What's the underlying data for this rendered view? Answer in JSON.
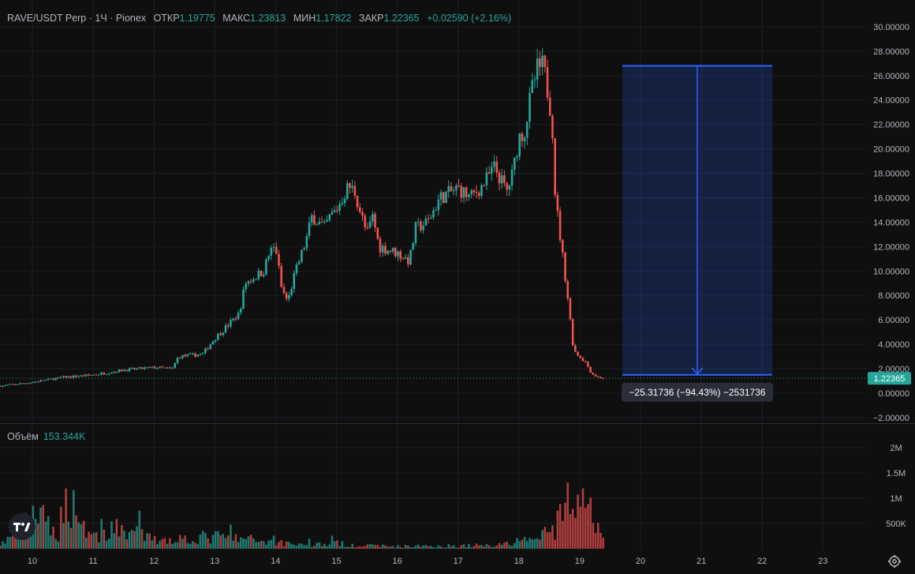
{
  "header": {
    "symbol": "RAVE/USDT Perp",
    "dot1": "·",
    "interval": "1Ч",
    "dot2": "·",
    "exchange": "Pionex",
    "open_label": "ОТКР",
    "open_value": "1.19775",
    "high_label": "МАКС",
    "high_value": "1.23813",
    "low_label": "МИН",
    "low_value": "1.17822",
    "close_label": "ЗАКР",
    "close_value": "1.22365",
    "change_value": "+0.02590 (+2.16%)"
  },
  "volume": {
    "label": "Объём",
    "value": "153.344K"
  },
  "last_price": "1.22365",
  "measure": {
    "label": "−25.31736 (−94.43%) −2531736",
    "from": 26.8,
    "to": 1.5
  },
  "colors": {
    "up": "#26a69a",
    "down": "#ef5350",
    "measure": "#2962ff",
    "background": "#0f0f0f"
  },
  "icons": {
    "logo": "tradingview-logo-icon",
    "settings": "gear-icon"
  },
  "chart_data": {
    "type": "candlestick",
    "title": "RAVE/USDT Perp · 1Ч · Pionex",
    "x_ticks": [
      "10",
      "11",
      "12",
      "13",
      "14",
      "15",
      "16",
      "17",
      "18",
      "19",
      "20",
      "21",
      "22",
      "23"
    ],
    "price_ticks": [
      "30.00000",
      "28.00000",
      "26.00000",
      "24.00000",
      "22.00000",
      "20.00000",
      "18.00000",
      "16.00000",
      "14.00000",
      "12.00000",
      "10.00000",
      "8.00000",
      "6.00000",
      "4.00000",
      "2.00000",
      "0.00000",
      "−2.00000"
    ],
    "volume_ticks": [
      "2M",
      "1.5M",
      "1M",
      "500K"
    ],
    "ylim": [
      -2,
      30
    ],
    "volume_ylim": [
      0,
      2000000
    ],
    "price_path": [
      [
        9.5,
        0.6
      ],
      [
        10.0,
        0.9
      ],
      [
        10.5,
        1.3
      ],
      [
        11.0,
        1.5
      ],
      [
        11.5,
        1.9
      ],
      [
        12.0,
        2.1
      ],
      [
        12.3,
        2.0
      ],
      [
        12.4,
        3.0
      ],
      [
        12.8,
        3.2
      ],
      [
        13.0,
        4.5
      ],
      [
        13.3,
        6.0
      ],
      [
        13.4,
        6.5
      ],
      [
        13.5,
        9.0
      ],
      [
        13.8,
        10.0
      ],
      [
        13.9,
        11.5
      ],
      [
        14.0,
        12.0
      ],
      [
        14.1,
        8.5
      ],
      [
        14.2,
        7.5
      ],
      [
        14.3,
        9.5
      ],
      [
        14.5,
        12.5
      ],
      [
        14.6,
        14.5
      ],
      [
        14.8,
        13.5
      ],
      [
        14.9,
        14.5
      ],
      [
        15.0,
        15.0
      ],
      [
        15.2,
        17.0
      ],
      [
        15.3,
        16.5
      ],
      [
        15.5,
        13.0
      ],
      [
        15.6,
        14.5
      ],
      [
        15.7,
        12.0
      ],
      [
        16.0,
        11.5
      ],
      [
        16.2,
        10.8
      ],
      [
        16.3,
        13.5
      ],
      [
        16.5,
        14.0
      ],
      [
        16.7,
        16.0
      ],
      [
        16.9,
        16.5
      ],
      [
        17.0,
        16.8
      ],
      [
        17.2,
        16.0
      ],
      [
        17.4,
        17.0
      ],
      [
        17.6,
        18.5
      ],
      [
        17.8,
        16.5
      ],
      [
        17.9,
        18.0
      ],
      [
        18.0,
        21.0
      ],
      [
        18.1,
        21.5
      ],
      [
        18.2,
        24.5
      ],
      [
        18.3,
        26.5
      ],
      [
        18.4,
        26.8
      ],
      [
        18.5,
        24.0
      ],
      [
        18.55,
        22.0
      ],
      [
        18.6,
        16.0
      ],
      [
        18.7,
        12.0
      ],
      [
        18.8,
        8.0
      ],
      [
        18.9,
        3.5
      ],
      [
        19.0,
        3.0
      ],
      [
        19.1,
        2.5
      ],
      [
        19.2,
        1.6
      ],
      [
        19.3,
        1.3
      ],
      [
        19.4,
        1.22365
      ]
    ],
    "volume_profile": [
      [
        9.5,
        150000
      ],
      [
        9.9,
        700000
      ],
      [
        10.0,
        1100000
      ],
      [
        10.4,
        400000
      ],
      [
        10.6,
        1600000
      ],
      [
        10.8,
        800000
      ],
      [
        11.0,
        350000
      ],
      [
        11.5,
        600000
      ],
      [
        12.0,
        250000
      ],
      [
        12.5,
        300000
      ],
      [
        13.0,
        350000
      ],
      [
        13.5,
        280000
      ],
      [
        14.0,
        200000
      ],
      [
        14.5,
        120000
      ],
      [
        15.0,
        150000
      ],
      [
        15.5,
        90000
      ],
      [
        16.0,
        70000
      ],
      [
        16.5,
        80000
      ],
      [
        17.0,
        90000
      ],
      [
        17.5,
        100000
      ],
      [
        18.0,
        200000
      ],
      [
        18.3,
        300000
      ],
      [
        18.6,
        600000
      ],
      [
        18.9,
        1400000
      ],
      [
        19.1,
        1100000
      ],
      [
        19.2,
        900000
      ],
      [
        19.4,
        150000
      ]
    ]
  }
}
